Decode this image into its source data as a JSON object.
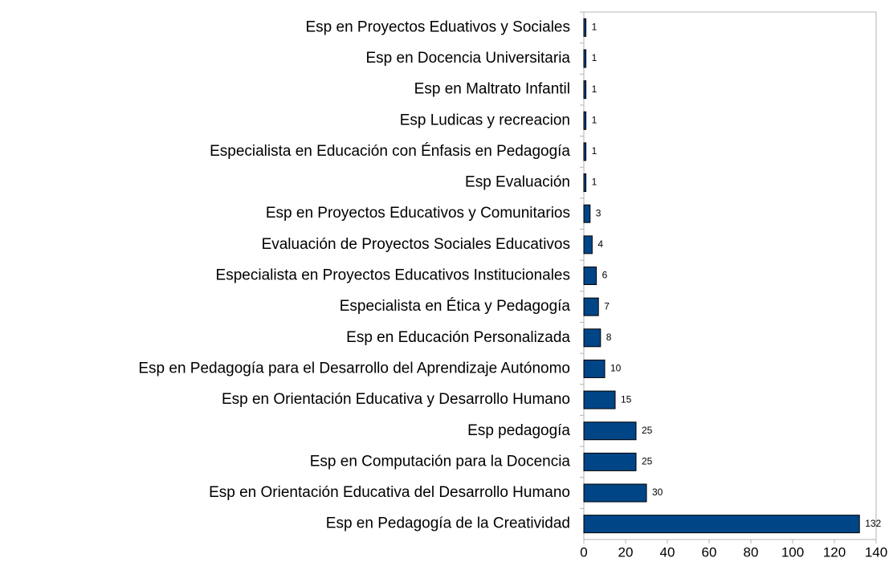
{
  "chart_data": {
    "type": "bar",
    "orientation": "horizontal",
    "categories": [
      "Esp en Proyectos Eduativos y Sociales",
      "Esp en Docencia Universitaria",
      "Esp en Maltrato Infantil",
      "Esp Ludicas y recreacion",
      "Especialista en Educación con Énfasis en Pedagogía",
      "Esp Evaluación",
      "Esp en Proyectos Educativos y Comunitarios",
      "Evaluación de Proyectos Sociales Educativos",
      "Especialista en Proyectos Educativos Institucionales",
      "Especialista en Ética y Pedagogía",
      "Esp en Educación Personalizada",
      "Esp en Pedagogía para el Desarrollo del Aprendizaje Autónomo",
      "Esp en Orientación Educativa y Desarrollo Humano",
      "Esp pedagogía ",
      "Esp en Computación para la Docencia",
      "Esp en Orientación Educativa del Desarrollo Humano",
      "Esp en Pedagogía de la Creatividad"
    ],
    "values": [
      1,
      1,
      1,
      1,
      1,
      1,
      3,
      4,
      6,
      7,
      8,
      10,
      15,
      25,
      25,
      30,
      132
    ],
    "color": "#004586",
    "xlim": [
      0,
      140
    ],
    "xticks": [
      0,
      20,
      40,
      60,
      80,
      100,
      120,
      140
    ],
    "grid": false
  }
}
